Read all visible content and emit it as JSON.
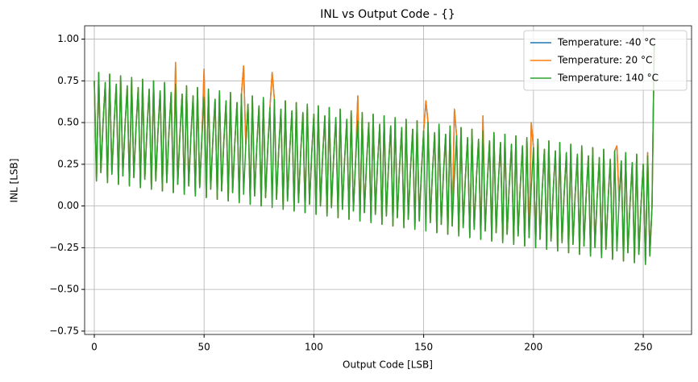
{
  "chart_data": {
    "type": "line",
    "title": "INL vs Output Code - {}",
    "x_label": "Output Code [LSB]",
    "y_label": "INL [LSB]",
    "xlim": [
      -4.4,
      272
    ],
    "ylim": [
      -0.77,
      1.08
    ],
    "xticks": [
      0,
      50,
      100,
      150,
      200,
      250
    ],
    "yticks": [
      {
        "value": -0.75,
        "label": "−0.75"
      },
      {
        "value": -0.5,
        "label": "−0.50"
      },
      {
        "value": -0.25,
        "label": "−0.25"
      },
      {
        "value": 0,
        "label": "0.00"
      },
      {
        "value": 0.25,
        "label": "0.25"
      },
      {
        "value": 0.5,
        "label": "0.50"
      },
      {
        "value": 0.75,
        "label": "0.75"
      },
      {
        "value": 1,
        "label": "1.00"
      }
    ],
    "grid": true,
    "legend": "upper right",
    "x": [
      0,
      1,
      2,
      3,
      4,
      5,
      6,
      7,
      8,
      9,
      10,
      11,
      12,
      13,
      14,
      15,
      16,
      17,
      18,
      19,
      20,
      21,
      22,
      23,
      24,
      25,
      26,
      27,
      28,
      29,
      30,
      31,
      32,
      33,
      34,
      35,
      36,
      37,
      38,
      39,
      40,
      41,
      42,
      43,
      44,
      45,
      46,
      47,
      48,
      49,
      50,
      51,
      52,
      53,
      54,
      55,
      56,
      57,
      58,
      59,
      60,
      61,
      62,
      63,
      64,
      65,
      66,
      67,
      68,
      69,
      70,
      71,
      72,
      73,
      74,
      75,
      76,
      77,
      78,
      79,
      80,
      81,
      82,
      83,
      84,
      85,
      86,
      87,
      88,
      89,
      90,
      91,
      92,
      93,
      94,
      95,
      96,
      97,
      98,
      99,
      100,
      101,
      102,
      103,
      104,
      105,
      106,
      107,
      108,
      109,
      110,
      111,
      112,
      113,
      114,
      115,
      116,
      117,
      118,
      119,
      120,
      121,
      122,
      123,
      124,
      125,
      126,
      127,
      128,
      129,
      130,
      131,
      132,
      133,
      134,
      135,
      136,
      137,
      138,
      139,
      140,
      141,
      142,
      143,
      144,
      145,
      146,
      147,
      148,
      149,
      150,
      151,
      152,
      153,
      154,
      155,
      156,
      157,
      158,
      159,
      160,
      161,
      162,
      163,
      164,
      165,
      166,
      167,
      168,
      169,
      170,
      171,
      172,
      173,
      174,
      175,
      176,
      177,
      178,
      179,
      180,
      181,
      182,
      183,
      184,
      185,
      186,
      187,
      188,
      189,
      190,
      191,
      192,
      193,
      194,
      195,
      196,
      197,
      198,
      199,
      200,
      201,
      202,
      203,
      204,
      205,
      206,
      207,
      208,
      209,
      210,
      211,
      212,
      213,
      214,
      215,
      216,
      217,
      218,
      219,
      220,
      221,
      222,
      223,
      224,
      225,
      226,
      227,
      228,
      229,
      230,
      231,
      232,
      233,
      234,
      235,
      236,
      237,
      238,
      239,
      240,
      241,
      242,
      243,
      244,
      245,
      246,
      247,
      248,
      249,
      250,
      251,
      252,
      253,
      254,
      255
    ],
    "series": [
      {
        "name": "Temperature: -40 °C",
        "color": "#1f77b4",
        "values": [
          0.75,
          0.15,
          0.8,
          0.2,
          0.5,
          0.74,
          0.14,
          0.79,
          0.19,
          0.49,
          0.73,
          0.13,
          0.78,
          0.18,
          0.48,
          0.72,
          0.12,
          0.77,
          0.17,
          0.47,
          0.71,
          0.11,
          0.76,
          0.16,
          0.46,
          0.7,
          0.1,
          0.75,
          0.15,
          0.45,
          0.69,
          0.09,
          0.74,
          0.14,
          0.44,
          0.68,
          0.08,
          0.86,
          0.13,
          0.43,
          0.67,
          0.07,
          0.72,
          0.12,
          0.42,
          0.66,
          0.06,
          0.71,
          0.11,
          0.41,
          0.82,
          0.05,
          0.7,
          0.1,
          0.4,
          0.64,
          0.04,
          0.69,
          0.09,
          0.39,
          0.63,
          0.03,
          0.68,
          0.08,
          0.38,
          0.62,
          0.02,
          0.67,
          0.84,
          0.37,
          0.61,
          0.01,
          0.66,
          0.06,
          0.36,
          0.6,
          0,
          0.65,
          0.05,
          0.35,
          0.59,
          0.8,
          0.64,
          0.04,
          0.34,
          0.58,
          -0.02,
          0.63,
          0.03,
          0.33,
          0.57,
          -0.03,
          0.62,
          0.02,
          0.32,
          0.56,
          -0.04,
          0.61,
          0.01,
          0.31,
          0.55,
          -0.05,
          0.6,
          0,
          0.3,
          0.54,
          -0.06,
          0.59,
          -0.01,
          0.29,
          0.53,
          -0.07,
          0.58,
          -0.02,
          0.28,
          0.52,
          -0.08,
          0.57,
          -0.03,
          0.27,
          0.66,
          -0.09,
          0.56,
          -0.04,
          0.26,
          0.5,
          -0.1,
          0.55,
          -0.05,
          0.25,
          0.49,
          -0.11,
          0.54,
          -0.06,
          0.24,
          0.48,
          -0.12,
          0.53,
          -0.07,
          0.23,
          0.47,
          -0.13,
          0.52,
          -0.08,
          0.22,
          0.46,
          -0.14,
          0.51,
          -0.09,
          0.21,
          0.45,
          0.63,
          0.5,
          -0.1,
          0.2,
          0.44,
          -0.16,
          0.49,
          -0.11,
          0.19,
          0.43,
          -0.17,
          0.48,
          -0.12,
          0.58,
          0.42,
          -0.18,
          0.47,
          -0.13,
          0.17,
          0.41,
          -0.19,
          0.46,
          -0.14,
          0.16,
          0.4,
          -0.2,
          0.54,
          -0.15,
          0.15,
          0.39,
          -0.21,
          0.44,
          -0.16,
          0.14,
          0.38,
          -0.22,
          0.43,
          -0.17,
          0.13,
          0.37,
          -0.23,
          0.42,
          -0.18,
          0.12,
          0.36,
          -0.24,
          0.41,
          -0.19,
          0.5,
          0.35,
          -0.25,
          0.4,
          -0.2,
          0.1,
          0.34,
          -0.26,
          0.39,
          -0.21,
          0.09,
          0.33,
          -0.27,
          0.38,
          -0.22,
          0.08,
          0.32,
          -0.28,
          0.37,
          -0.23,
          0.07,
          0.31,
          -0.29,
          0.36,
          -0.24,
          0.06,
          0.3,
          -0.3,
          0.35,
          -0.25,
          0.05,
          0.29,
          -0.31,
          0.34,
          -0.26,
          0.04,
          0.28,
          -0.32,
          0.33,
          0.36,
          0.03,
          0.27,
          -0.33,
          0.32,
          -0.28,
          0.02,
          0.26,
          -0.34,
          0.31,
          -0.29,
          0.01,
          0.25,
          -0.35,
          0.32,
          -0.3,
          0,
          0.97
        ]
      },
      {
        "name": "Temperature: 20 °C",
        "color": "#ff7f0e",
        "values": [
          0.75,
          0.15,
          0.8,
          0.2,
          0.5,
          0.74,
          0.14,
          0.79,
          0.19,
          0.49,
          0.73,
          0.13,
          0.78,
          0.18,
          0.48,
          0.72,
          0.12,
          0.77,
          0.17,
          0.47,
          0.71,
          0.11,
          0.76,
          0.16,
          0.46,
          0.7,
          0.1,
          0.75,
          0.15,
          0.45,
          0.69,
          0.09,
          0.74,
          0.14,
          0.44,
          0.68,
          0.08,
          0.86,
          0.13,
          0.43,
          0.67,
          0.07,
          0.72,
          0.12,
          0.42,
          0.66,
          0.06,
          0.71,
          0.11,
          0.41,
          0.82,
          0.05,
          0.7,
          0.1,
          0.4,
          0.64,
          0.04,
          0.69,
          0.09,
          0.39,
          0.63,
          0.03,
          0.68,
          0.08,
          0.38,
          0.62,
          0.02,
          0.67,
          0.84,
          0.37,
          0.61,
          0.01,
          0.66,
          0.06,
          0.36,
          0.6,
          0,
          0.65,
          0.05,
          0.35,
          0.59,
          0.8,
          0.64,
          0.04,
          0.34,
          0.58,
          -0.02,
          0.63,
          0.03,
          0.33,
          0.57,
          -0.03,
          0.62,
          0.02,
          0.32,
          0.56,
          -0.04,
          0.61,
          0.01,
          0.31,
          0.55,
          -0.05,
          0.6,
          0,
          0.3,
          0.54,
          -0.06,
          0.59,
          -0.01,
          0.29,
          0.53,
          -0.07,
          0.58,
          -0.02,
          0.28,
          0.52,
          -0.08,
          0.57,
          -0.03,
          0.27,
          0.66,
          -0.09,
          0.56,
          -0.04,
          0.26,
          0.5,
          -0.1,
          0.55,
          -0.05,
          0.25,
          0.49,
          -0.11,
          0.54,
          -0.06,
          0.24,
          0.48,
          -0.12,
          0.53,
          -0.07,
          0.23,
          0.47,
          -0.13,
          0.52,
          -0.08,
          0.22,
          0.46,
          -0.14,
          0.51,
          -0.09,
          0.21,
          0.45,
          0.63,
          0.5,
          -0.1,
          0.2,
          0.44,
          -0.16,
          0.49,
          -0.11,
          0.19,
          0.43,
          -0.17,
          0.48,
          -0.12,
          0.58,
          0.42,
          -0.18,
          0.47,
          -0.13,
          0.17,
          0.41,
          -0.19,
          0.46,
          -0.14,
          0.16,
          0.4,
          -0.2,
          0.54,
          -0.15,
          0.15,
          0.39,
          -0.21,
          0.44,
          -0.16,
          0.14,
          0.38,
          -0.22,
          0.43,
          -0.17,
          0.13,
          0.37,
          -0.23,
          0.42,
          -0.18,
          0.12,
          0.36,
          -0.24,
          0.41,
          -0.19,
          0.5,
          0.35,
          -0.25,
          0.4,
          -0.2,
          0.1,
          0.34,
          -0.26,
          0.39,
          -0.21,
          0.09,
          0.33,
          -0.27,
          0.38,
          -0.22,
          0.08,
          0.32,
          -0.28,
          0.37,
          -0.23,
          0.07,
          0.31,
          -0.29,
          0.36,
          -0.24,
          0.06,
          0.3,
          -0.3,
          0.35,
          -0.25,
          0.05,
          0.29,
          -0.31,
          0.34,
          -0.26,
          0.04,
          0.28,
          -0.32,
          0.33,
          0.36,
          0.03,
          0.27,
          -0.33,
          0.32,
          -0.28,
          0.02,
          0.26,
          -0.34,
          0.31,
          -0.29,
          0.01,
          0.25,
          -0.35,
          0.32,
          -0.3,
          0,
          0.97
        ]
      },
      {
        "name": "Temperature: 140 °C",
        "color": "#2ca02c",
        "values": [
          0.75,
          0.15,
          0.8,
          0.2,
          0.5,
          0.74,
          0.14,
          0.79,
          0.19,
          0.49,
          0.73,
          0.13,
          0.78,
          0.18,
          0.48,
          0.72,
          0.12,
          0.77,
          0.17,
          0.47,
          0.71,
          0.11,
          0.76,
          0.16,
          0.46,
          0.7,
          0.1,
          0.75,
          0.15,
          0.45,
          0.69,
          0.09,
          0.74,
          0.14,
          0.44,
          0.68,
          0.08,
          0.73,
          0.13,
          0.43,
          0.67,
          0.07,
          0.72,
          0.12,
          0.42,
          0.66,
          0.06,
          0.71,
          0.11,
          0.41,
          0.65,
          0.05,
          0.7,
          0.1,
          0.4,
          0.64,
          0.04,
          0.69,
          0.09,
          0.39,
          0.63,
          0.03,
          0.68,
          0.08,
          0.38,
          0.62,
          0.02,
          0.67,
          0.07,
          0.37,
          0.61,
          0.01,
          0.66,
          0.06,
          0.36,
          0.6,
          0,
          0.65,
          0.05,
          0.35,
          0.59,
          -0.01,
          0.64,
          0.04,
          0.34,
          0.58,
          -0.02,
          0.63,
          0.03,
          0.33,
          0.57,
          -0.03,
          0.62,
          0.02,
          0.32,
          0.56,
          -0.04,
          0.61,
          0.01,
          0.31,
          0.55,
          -0.05,
          0.6,
          0,
          0.3,
          0.54,
          -0.06,
          0.59,
          -0.01,
          0.29,
          0.53,
          -0.07,
          0.58,
          -0.02,
          0.28,
          0.52,
          -0.08,
          0.57,
          -0.03,
          0.27,
          0.51,
          -0.09,
          0.56,
          -0.04,
          0.26,
          0.5,
          -0.1,
          0.55,
          -0.05,
          0.25,
          0.49,
          -0.11,
          0.54,
          -0.06,
          0.24,
          0.48,
          -0.12,
          0.53,
          -0.07,
          0.23,
          0.47,
          -0.13,
          0.52,
          -0.08,
          0.22,
          0.46,
          -0.14,
          0.51,
          -0.09,
          0.21,
          0.45,
          -0.15,
          0.5,
          -0.1,
          0.2,
          0.44,
          -0.16,
          0.49,
          -0.11,
          0.19,
          0.43,
          -0.17,
          0.48,
          -0.12,
          0.18,
          0.42,
          -0.18,
          0.47,
          -0.13,
          0.17,
          0.41,
          -0.19,
          0.46,
          -0.14,
          0.16,
          0.4,
          -0.2,
          0.45,
          -0.15,
          0.15,
          0.39,
          -0.21,
          0.44,
          -0.16,
          0.14,
          0.38,
          -0.22,
          0.43,
          -0.17,
          0.13,
          0.37,
          -0.23,
          0.42,
          -0.18,
          0.12,
          0.36,
          -0.24,
          0.41,
          -0.19,
          0.11,
          0.35,
          -0.25,
          0.4,
          -0.2,
          0.1,
          0.34,
          -0.26,
          0.39,
          -0.21,
          0.09,
          0.33,
          -0.27,
          0.38,
          -0.22,
          0.08,
          0.32,
          -0.28,
          0.37,
          -0.23,
          0.07,
          0.31,
          -0.29,
          0.36,
          -0.24,
          0.06,
          0.3,
          -0.3,
          0.35,
          -0.25,
          0.05,
          0.29,
          -0.31,
          0.34,
          -0.26,
          0.04,
          0.28,
          -0.32,
          0.33,
          -0.27,
          0.03,
          0.27,
          -0.33,
          0.32,
          -0.28,
          0.02,
          0.26,
          -0.34,
          0.31,
          -0.29,
          0.01,
          0.25,
          -0.35,
          0.3,
          -0.3,
          0,
          0.97
        ]
      }
    ]
  }
}
